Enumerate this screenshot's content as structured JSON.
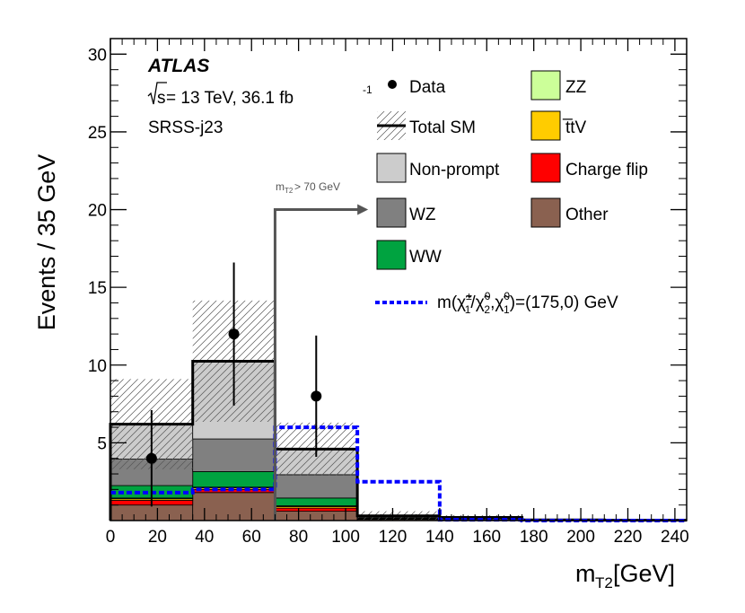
{
  "chart_data": {
    "type": "histogram",
    "experiment": "ATLAS",
    "energy_prefix": "s",
    "energy_suffix": " = 13 TeV, 36.1 fb",
    "energy_sup": "-1",
    "region": "SRSS-j23",
    "xlabel_main": "m",
    "xlabel_sub": "T2",
    "xlabel_unit": " [GeV]",
    "ylabel": "Events / 35 GeV",
    "xlim": [
      0,
      245
    ],
    "ylim": [
      0,
      31
    ],
    "xticks": [
      0,
      20,
      40,
      60,
      80,
      100,
      120,
      140,
      160,
      180,
      200,
      220,
      240
    ],
    "yticks": [
      5,
      10,
      15,
      20,
      25,
      30
    ],
    "bin_edges": [
      0,
      35,
      70,
      105,
      140,
      175,
      210,
      245
    ],
    "stack": [
      {
        "name": "Other",
        "color": "#8a6150",
        "values": [
          1.0,
          1.8,
          0.6,
          0.08,
          0.03,
          0.01,
          0.01
        ]
      },
      {
        "name": "Charge flip",
        "color": "#ff0000",
        "values": [
          0.3,
          0.2,
          0.2,
          0.02,
          0.01,
          0.0,
          0.0
        ]
      },
      {
        "name": "t̅tV",
        "color": "#ffcc00",
        "values": [
          0.1,
          0.1,
          0.1,
          0.02,
          0.01,
          0.0,
          0.0
        ]
      },
      {
        "name": "ZZ",
        "color": "#ccff99",
        "values": [
          0.05,
          0.05,
          0.05,
          0.01,
          0.0,
          0.0,
          0.0
        ]
      },
      {
        "name": "WW",
        "color": "#00a340",
        "values": [
          0.8,
          1.0,
          0.5,
          0.05,
          0.03,
          0.01,
          0.0
        ]
      },
      {
        "name": "WZ",
        "color": "#808080",
        "values": [
          1.7,
          2.1,
          1.5,
          0.07,
          0.07,
          0.02,
          0.0
        ]
      },
      {
        "name": "Non-prompt",
        "color": "#cccccc",
        "values": [
          2.25,
          5.0,
          1.65,
          0.05,
          0.05,
          0.0,
          0.0
        ]
      }
    ],
    "total_sm": [
      6.2,
      10.25,
      4.6,
      0.3,
      0.2,
      0.04,
      0.02
    ],
    "total_sm_unc": [
      2.9,
      3.9,
      1.7,
      0.3,
      0.15,
      0.03,
      0.02
    ],
    "data": {
      "x": [
        17.5,
        52.5,
        87.5
      ],
      "y": [
        4,
        12,
        8
      ],
      "err": [
        3.1,
        4.6,
        3.9
      ]
    },
    "signal": {
      "label_main": "m(",
      "label_tail": ")=(175,0) GeV",
      "color": "#0000ff",
      "values": [
        1.8,
        2.0,
        6.0,
        2.5,
        0.05,
        0.0,
        0.0
      ]
    },
    "cut": {
      "x": 70,
      "y_level": 20,
      "x_end": 105,
      "label": "m",
      "label_sub": "T2",
      "label_tail": " > 70 GeV"
    },
    "legend": {
      "data": "Data",
      "total": "Total SM",
      "nonprompt": "Non-prompt",
      "wz": "WZ",
      "ww": "WW",
      "zz": "ZZ",
      "ttv": "t̅tV",
      "chargeflip": "Charge flip",
      "other": "Other"
    }
  }
}
